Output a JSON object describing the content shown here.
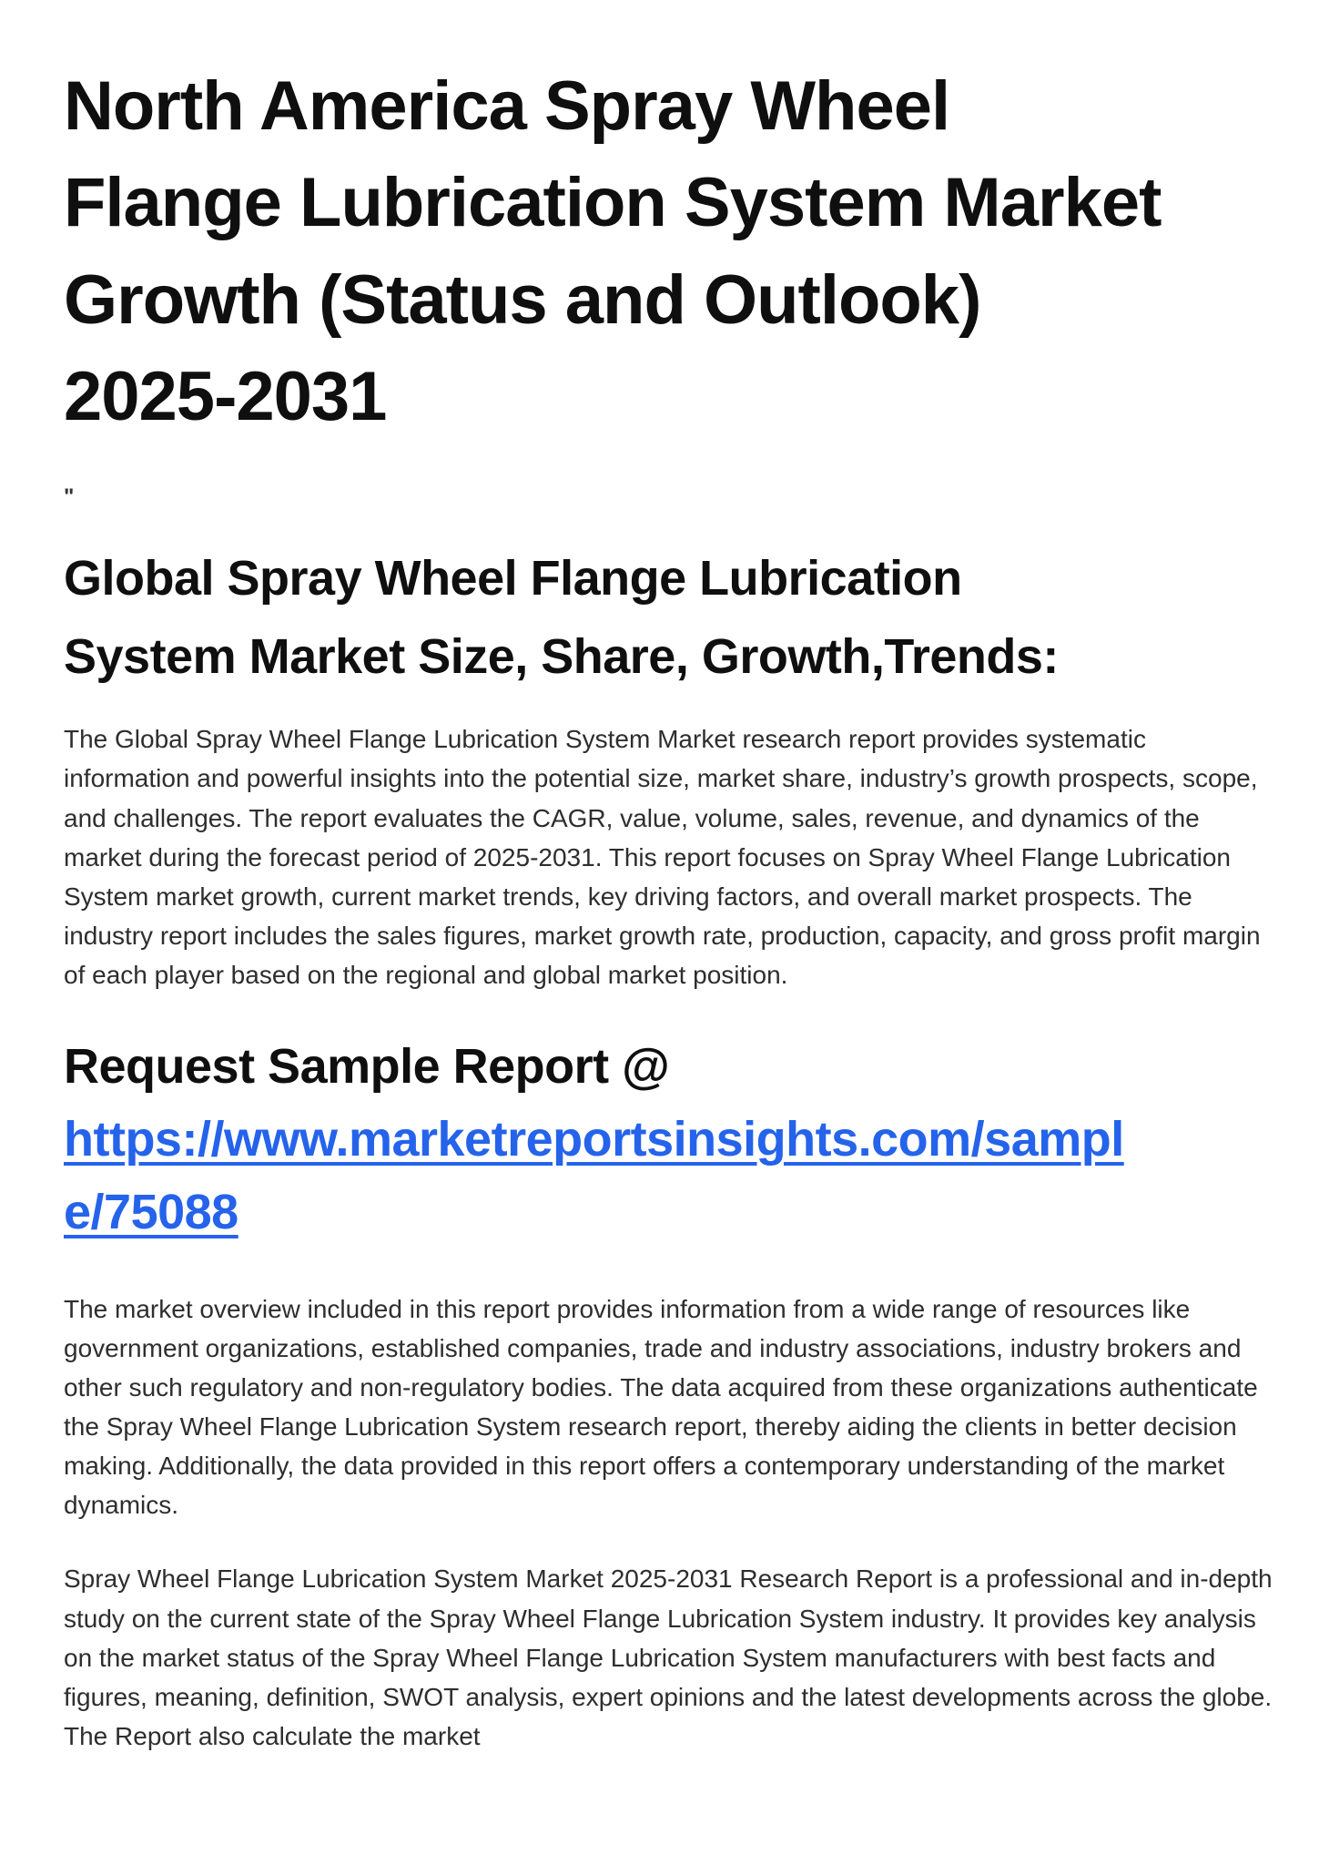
{
  "article": {
    "title": "North America Spray Wheel\nFlange Lubrication System Market\nGrowth (Status and Outlook)\n2025-2031",
    "quote_mark": "\"",
    "section_heading": "Global Spray Wheel Flange Lubrication\nSystem Market Size, Share, Growth,Trends:",
    "intro_paragraph": "The Global Spray Wheel Flange Lubrication System Market research report provides systematic information and powerful insights into the potential size, market share, industry’s growth prospects, scope, and challenges. The report evaluates the CAGR, value, volume, sales, revenue, and dynamics of the market during the forecast period of 2025-2031. This report focuses on Spray Wheel Flange Lubrication System market growth, current market trends, key driving factors, and overall market prospects. The industry report includes the sales figures, market growth rate, production, capacity, and gross profit margin of each player based on the regional and global market position.",
    "request_sample": {
      "label": "Request Sample Report @",
      "link_text": "https://www.marketreportsinsights.com/sample/75088"
    },
    "overview_paragraph": "The market overview included in this report provides information from a wide range of resources like government organizations, established companies, trade and industry associations, industry brokers and other such regulatory and non-regulatory bodies. The data acquired from these organizations authenticate the Spray Wheel Flange Lubrication System research report, thereby aiding the clients in better decision making. Additionally, the data provided in this report offers a contemporary understanding of the market dynamics.",
    "study_paragraph": "Spray Wheel Flange Lubrication System Market 2025-2031 Research Report is a professional and in-depth study on the current state of the Spray Wheel Flange Lubrication System industry. It provides key analysis on the market status of the Spray Wheel Flange Lubrication System manufacturers with best facts and figures, meaning, definition, SWOT analysis, expert opinions and the latest developments across the globe. The Report also calculate the market"
  },
  "colors": {
    "page_background": "#ffffff",
    "heading_text": "#0f0f0f",
    "body_text": "#2e2e2e",
    "link_blue": "#2563eb"
  }
}
